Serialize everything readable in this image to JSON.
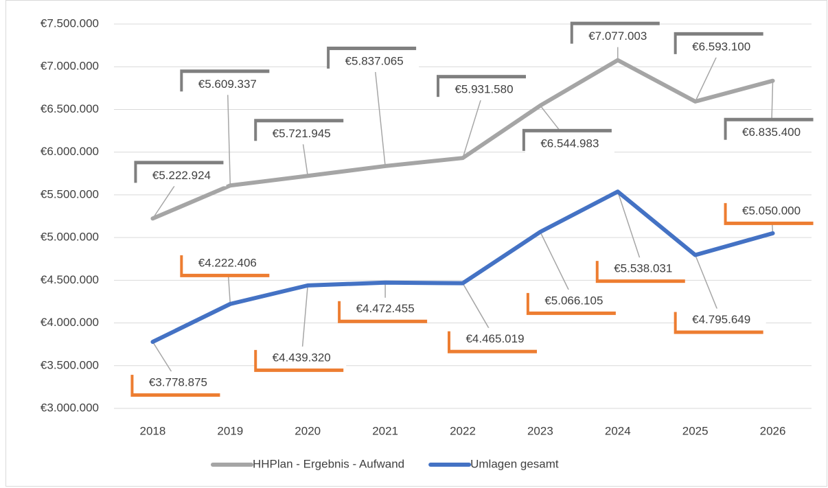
{
  "chart_data": {
    "type": "line",
    "categories": [
      "2018",
      "2019",
      "2020",
      "2021",
      "2022",
      "2023",
      "2024",
      "2025",
      "2026"
    ],
    "series": [
      {
        "name": "HHPlan - Ergebnis - Aufwand",
        "color": "#a5a5a5",
        "values": [
          5222924,
          5609337,
          5721945,
          5837065,
          5931580,
          6544983,
          7077003,
          6593100,
          6835400
        ],
        "value_labels": [
          "€5.222.924",
          "€5.609.337",
          "€5.721.945",
          "€5.837.065",
          "€5.931.580",
          "€6.544.983",
          "€7.077.003",
          "€6.593.100",
          "€6.835.400"
        ]
      },
      {
        "name": "Umlagen gesamt",
        "color": "#4472c4",
        "values": [
          3778875,
          4222406,
          4439320,
          4472455,
          4465019,
          5066105,
          5538031,
          4795649,
          5050000
        ],
        "value_labels": [
          "€3.778.875",
          "€4.222.406",
          "€4.439.320",
          "€4.472.455",
          "€4.465.019",
          "€5.066.105",
          "€5.538.031",
          "€4.795.649",
          "€5.050.000"
        ]
      }
    ],
    "ylim": [
      3000000,
      7500000
    ],
    "yticks": [
      {
        "value": 3000000,
        "label": "€3.000.000"
      },
      {
        "value": 3500000,
        "label": "€3.500.000"
      },
      {
        "value": 4000000,
        "label": "€4.000.000"
      },
      {
        "value": 4500000,
        "label": "€4.500.000"
      },
      {
        "value": 5000000,
        "label": "€5.000.000"
      },
      {
        "value": 5500000,
        "label": "€5.500.000"
      },
      {
        "value": 6000000,
        "label": "€6.000.000"
      },
      {
        "value": 6500000,
        "label": "€6.500.000"
      },
      {
        "value": 7000000,
        "label": "€7.000.000"
      },
      {
        "value": 7500000,
        "label": "€7.500.000"
      }
    ],
    "grid": true,
    "legend": "bottom"
  }
}
